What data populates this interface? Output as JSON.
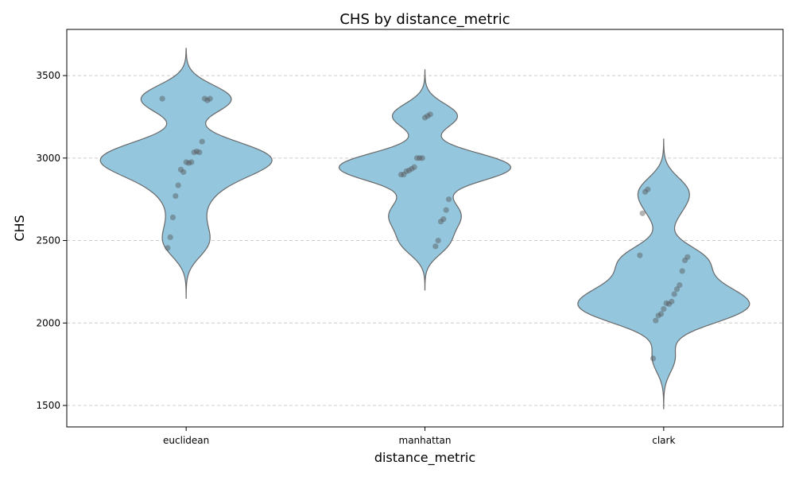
{
  "chart_data": {
    "type": "violin",
    "title": "CHS by distance_metric",
    "xlabel": "distance_metric",
    "ylabel": "CHS",
    "categories": [
      "euclidean",
      "manhattan",
      "clark"
    ],
    "ylim": [
      1370,
      3780
    ],
    "yticks": [
      1500,
      2000,
      2500,
      3000,
      3500
    ],
    "grid": "y-dashed",
    "colors": {
      "violin_fill": "#92c5de",
      "violin_edge": "#666666",
      "points": "#555555"
    },
    "series": [
      {
        "category": "euclidean",
        "range": [
          2150,
          3665
        ],
        "values": [
          3360,
          3360,
          3350,
          3360,
          3100,
          3035,
          3040,
          3035,
          2975,
          2970,
          2975,
          2915,
          2930,
          2835,
          2770,
          2640,
          2520,
          2455
        ]
      },
      {
        "category": "manhattan",
        "range": [
          2200,
          3535
        ],
        "values": [
          3265,
          3255,
          3245,
          3000,
          3000,
          3000,
          2945,
          2935,
          2925,
          2920,
          2900,
          2900,
          2750,
          2685,
          2630,
          2615,
          2500,
          2465
        ]
      },
      {
        "category": "clark",
        "range": [
          1480,
          3115
        ],
        "values": [
          2810,
          2795,
          2665,
          2410,
          2400,
          2380,
          2315,
          2230,
          2205,
          2175,
          2130,
          2115,
          2120,
          2085,
          2055,
          2045,
          2015,
          1785
        ]
      }
    ]
  }
}
